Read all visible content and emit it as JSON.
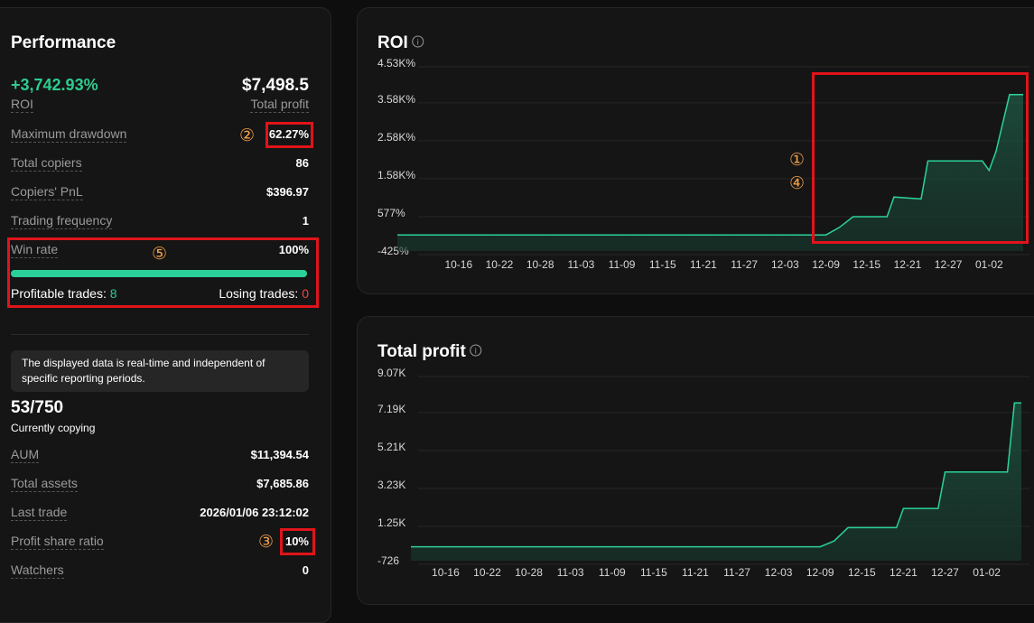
{
  "sidebar": {
    "title": "Performance",
    "roi_value": "+3,742.93%",
    "roi_label": "ROI",
    "profit_value": "$7,498.5",
    "profit_label": "Total profit",
    "stats": [
      {
        "label": "Maximum drawdown",
        "value": "62.27%"
      },
      {
        "label": "Total copiers",
        "value": "86"
      },
      {
        "label": "Copiers' PnL",
        "value": "$396.97"
      },
      {
        "label": "Trading frequency",
        "value": "1"
      }
    ],
    "win_rate": {
      "label": "Win rate",
      "rate": 100,
      "rate_label": "100%",
      "profitable_label": "Profitable trades:",
      "profitable": "8",
      "losing_label": "Losing trades:",
      "losing": "0"
    },
    "note": "The displayed data is real-time and independent of specific reporting periods.",
    "copying": {
      "value": "53/750",
      "label": "Currently copying"
    },
    "details": [
      {
        "label": "AUM",
        "value": "$11,394.54"
      },
      {
        "label": "Total assets",
        "value": "$7,685.86"
      },
      {
        "label": "Last trade",
        "value": "2026/01/06 23:12:02"
      },
      {
        "label": "Profit share ratio",
        "value": "10%"
      },
      {
        "label": "Watchers",
        "value": "0"
      }
    ]
  },
  "annotations": {
    "drawdown": "②",
    "profit_share": "③",
    "win_rate": "⑤",
    "roi_upper": "①",
    "roi_lower": "④"
  },
  "chart_data": [
    {
      "type": "line",
      "title": "ROI",
      "color": "#2bd19b",
      "x": [
        "10-07",
        "12-09",
        "12-11",
        "12-13",
        "12-18",
        "12-19",
        "12-23",
        "12-24",
        "01-01",
        "01-02",
        "01-03",
        "01-05",
        "01-07"
      ],
      "values": [
        0,
        0,
        200,
        480,
        480,
        1000,
        950,
        1950,
        1950,
        1700,
        2200,
        3700,
        3700
      ],
      "xlim": [
        "10-07",
        "01-07"
      ],
      "xticks": [
        "10-16",
        "10-22",
        "10-28",
        "11-03",
        "11-09",
        "11-15",
        "11-21",
        "11-27",
        "12-03",
        "12-09",
        "12-15",
        "12-21",
        "12-27",
        "01-02"
      ],
      "ylim": [
        -425,
        4530
      ],
      "yticks": [
        {
          "value": 4530,
          "label": "4.53K%"
        },
        {
          "value": 3580,
          "label": "3.58K%"
        },
        {
          "value": 2580,
          "label": "2.58K%"
        },
        {
          "value": 1580,
          "label": "1.58K%"
        },
        {
          "value": 577,
          "label": "577%"
        },
        {
          "value": -425,
          "label": "-425%"
        }
      ],
      "grid": true
    },
    {
      "type": "line",
      "title": "Total profit",
      "color": "#2bd19b",
      "x": [
        "10-11",
        "12-09",
        "12-11",
        "12-13",
        "12-20",
        "12-21",
        "12-26",
        "12-27",
        "01-05",
        "01-06",
        "01-07"
      ],
      "values": [
        0,
        0,
        300,
        1000,
        1000,
        2000,
        2000,
        3900,
        3900,
        7500,
        7500
      ],
      "xlim": [
        "10-11",
        "01-07"
      ],
      "xticks": [
        "10-16",
        "10-22",
        "10-28",
        "11-03",
        "11-09",
        "11-15",
        "11-21",
        "11-27",
        "12-03",
        "12-09",
        "12-15",
        "12-21",
        "12-27",
        "01-02"
      ],
      "ylim": [
        -726,
        9070
      ],
      "yticks": [
        {
          "value": 9070,
          "label": "9.07K"
        },
        {
          "value": 7190,
          "label": "7.19K"
        },
        {
          "value": 5210,
          "label": "5.21K"
        },
        {
          "value": 3230,
          "label": "3.23K"
        },
        {
          "value": 1250,
          "label": "1.25K"
        },
        -726
      ],
      "grid": true
    }
  ]
}
